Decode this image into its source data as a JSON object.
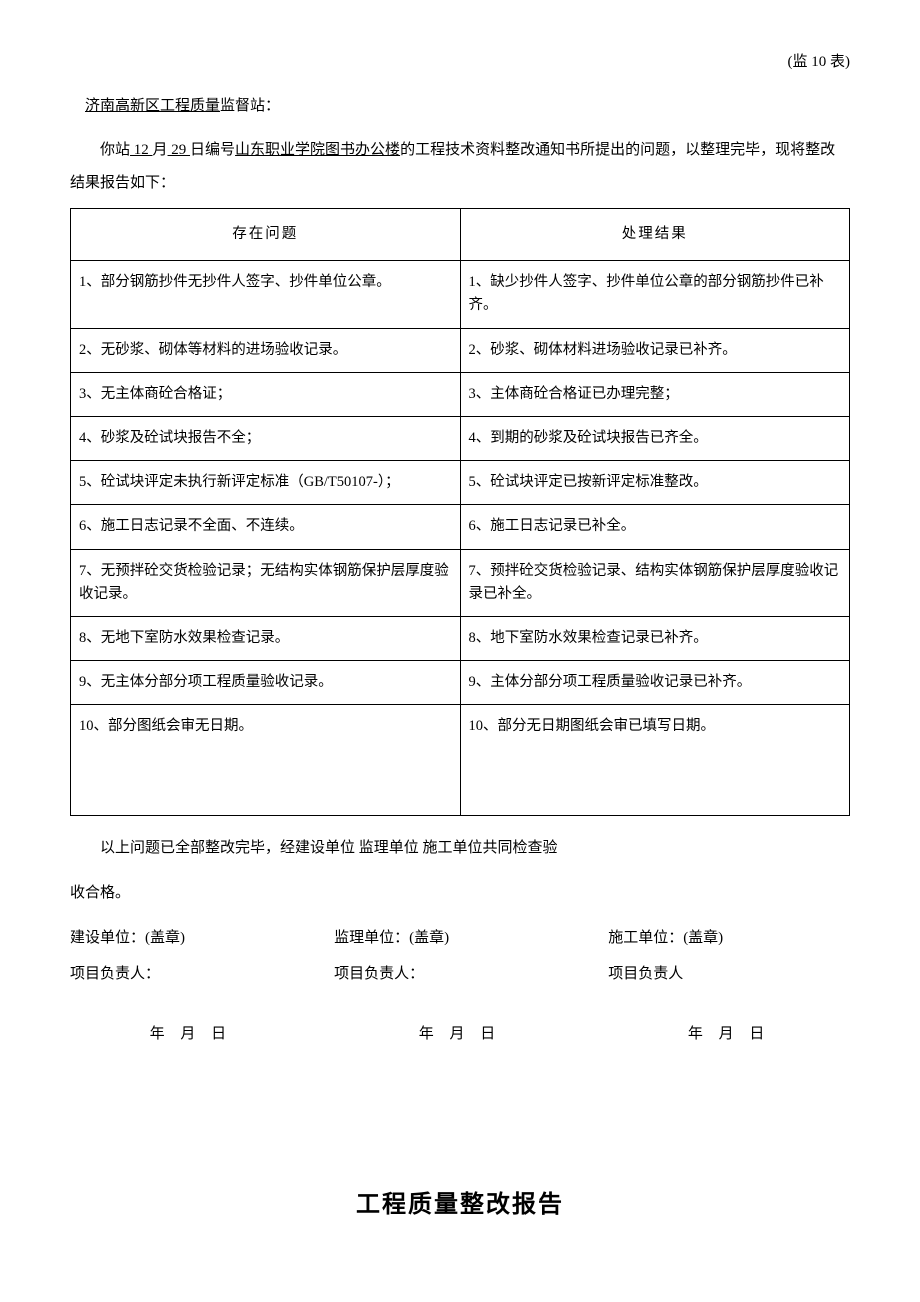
{
  "form_code": "(监 10 表)",
  "addressee": "济南高新区工程质量",
  "addressee_suffix": "监督站：",
  "intro_prefix": "你站",
  "intro_month": " 12 ",
  "intro_month_suffix": "月",
  "intro_day": " 29 ",
  "intro_day_suffix": "日编号",
  "intro_project": "山东职业学院图书办公楼",
  "intro_tail": "的工程技术资料整改通知书所提出的问题，以整理完毕，现将整改结果报告如下：",
  "table": {
    "header_left": "存在问题",
    "header_right": "处理结果",
    "rows": [
      {
        "l": "1、部分钢筋抄件无抄件人签字、抄件单位公章。",
        "r": "1、缺少抄件人签字、抄件单位公章的部分钢筋抄件已补齐。"
      },
      {
        "l": "2、无砂浆、砌体等材料的进场验收记录。",
        "r": "2、砂浆、砌体材料进场验收记录已补齐。"
      },
      {
        "l": "3、无主体商砼合格证；",
        "r": "3、主体商砼合格证已办理完整；"
      },
      {
        "l": "4、砂浆及砼试块报告不全；",
        "r": "4、到期的砂浆及砼试块报告已齐全。"
      },
      {
        "l": "5、砼试块评定未执行新评定标准（GB/T50107-）；",
        "r": "5、砼试块评定已按新评定标准整改。"
      },
      {
        "l": "6、施工日志记录不全面、不连续。",
        "r": "6、施工日志记录已补全。"
      },
      {
        "l": "7、无预拌砼交货检验记录；无结构实体钢筋保护层厚度验收记录。",
        "r": "7、预拌砼交货检验记录、结构实体钢筋保护层厚度验收记录已补全。"
      },
      {
        "l": "8、无地下室防水效果检查记录。",
        "r": "8、地下室防水效果检查记录已补齐。"
      },
      {
        "l": "9、无主体分部分项工程质量验收记录。",
        "r": "9、主体分部分项工程质量验收记录已补齐。"
      },
      {
        "l": "10、部分图纸会审无日期。",
        "r": "10、部分无日期图纸会审已填写日期。"
      }
    ]
  },
  "conclusion_line1": "以上问题已全部整改完毕，经建设单位 监理单位 施工单位共同检查验",
  "conclusion_line2": "收合格。",
  "sig": {
    "col1_unit": "建设单位：(盖章)",
    "col1_person": "项目负责人：",
    "col2_unit": "监理单位：(盖章)",
    "col2_person": "项目负责人：",
    "col3_unit": "施工单位：(盖章)",
    "col3_person": "项目负责人"
  },
  "date_text": "年  月  日",
  "title2": "工程质量整改报告"
}
